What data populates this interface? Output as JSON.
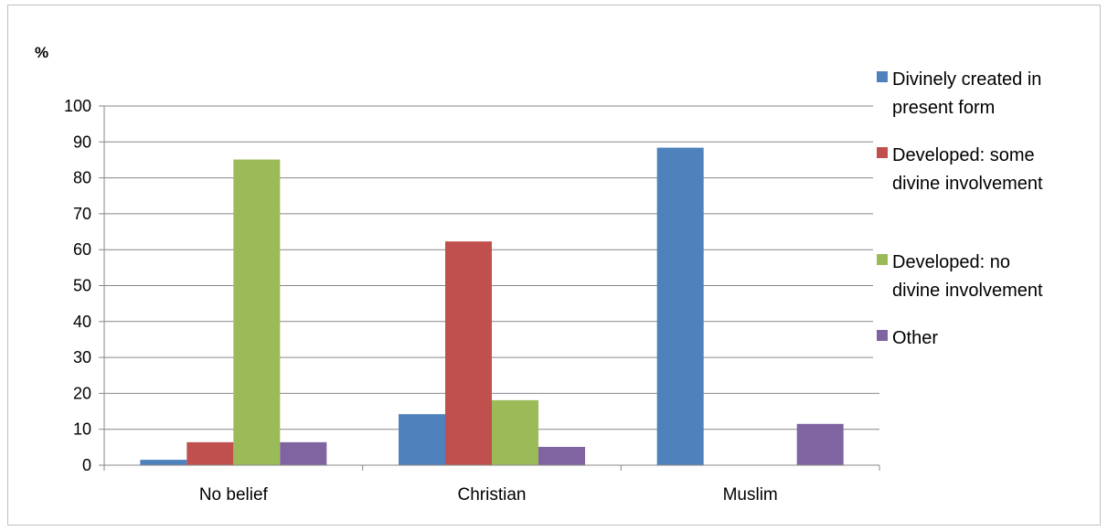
{
  "chart_data": {
    "type": "bar",
    "ylabel": "%",
    "xlabel": "",
    "title": "",
    "categories": [
      "No belief",
      "Christian",
      "Muslim"
    ],
    "ylim": [
      0,
      100
    ],
    "yticks": [
      0,
      10,
      20,
      30,
      40,
      50,
      60,
      70,
      80,
      90,
      100
    ],
    "grid": true,
    "legend_position": "right",
    "series": [
      {
        "name": "Divinely created in present form",
        "legend_lines": [
          "Divinely created in",
          "present form"
        ],
        "color": "#4f81bd",
        "values": [
          1.5,
          14.2,
          88.4
        ]
      },
      {
        "name": "Developed: some divine involvement",
        "legend_lines": [
          "Developed: some",
          "divine involvement"
        ],
        "color": "#c0504d",
        "values": [
          6.4,
          62.3,
          0
        ]
      },
      {
        "name": "Developed: no divine involvement",
        "legend_lines": [
          "Developed: no",
          "divine involvement"
        ],
        "color": "#9bbb59",
        "values": [
          85.1,
          18.1,
          0
        ]
      },
      {
        "name": "Other",
        "legend_lines": [
          "Other"
        ],
        "color": "#8064a2",
        "values": [
          6.4,
          5.1,
          11.5
        ]
      }
    ]
  }
}
